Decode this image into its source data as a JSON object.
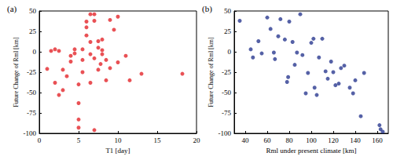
{
  "chart_data": [
    {
      "type": "scatter",
      "title": "(a)",
      "x_label": "T1 [day]",
      "y_label": "Future Change of Rml [km]",
      "color": "#e3262b",
      "marker": "circle",
      "x": [
        1,
        1.5,
        2,
        2.5,
        2,
        2.5,
        3,
        3,
        3.5,
        4,
        4,
        4.5,
        4.5,
        5,
        5,
        5,
        5,
        5.5,
        5.5,
        5.5,
        6,
        6,
        6,
        6.5,
        6.5,
        6.5,
        7,
        7,
        7,
        7,
        7.5,
        7.5,
        7.5,
        8,
        8,
        8,
        8.5,
        8.5,
        9,
        9,
        9.5,
        10,
        10,
        11,
        11.5,
        13,
        18.2,
        6.5,
        7.8
      ],
      "values": [
        -21,
        1,
        3,
        1,
        -38,
        -53,
        -47,
        -22,
        -30,
        -5,
        -12,
        -2,
        3,
        -40,
        -63,
        -83,
        -93,
        -25,
        -10,
        3,
        20,
        30,
        37,
        12,
        -3,
        -38,
        46,
        38,
        -8,
        -96,
        5,
        13,
        -22,
        -3,
        2,
        15,
        -10,
        -35,
        39,
        -20,
        27,
        43,
        -13,
        -5,
        -35,
        -27,
        -27,
        46,
        -15
      ],
      "xlim": [
        0,
        20
      ],
      "xticks": [
        0,
        5,
        10,
        15,
        20
      ],
      "ylim": [
        -100,
        50
      ],
      "yticks": [
        -100,
        -75,
        -50,
        -25,
        0,
        25,
        50
      ],
      "grid": false
    },
    {
      "type": "scatter",
      "title": "(b)",
      "x_label": "Rml under present climate [km]",
      "y_label": "Future Change of Rml [km]",
      "color": "#2b3990",
      "marker": "circle",
      "x": [
        35,
        45,
        47,
        52,
        55,
        60,
        63,
        66,
        67,
        70,
        72,
        76,
        78,
        79,
        80,
        83,
        85,
        87,
        90,
        92,
        95,
        97,
        100,
        102,
        103,
        105,
        107,
        110,
        113,
        115,
        118,
        120,
        122,
        125,
        127,
        130,
        135,
        138,
        140,
        145,
        148,
        162,
        163,
        165
      ],
      "values": [
        38,
        3,
        -7,
        13,
        -2,
        42,
        28,
        -1,
        -9,
        19,
        40,
        15,
        -37,
        -31,
        37,
        12,
        -16,
        -1,
        46,
        -4,
        -51,
        -26,
        11,
        16,
        -44,
        -53,
        -7,
        16,
        -24,
        -33,
        -12,
        -25,
        -41,
        -39,
        -20,
        -17,
        -44,
        -51,
        -35,
        -79,
        -26,
        -90,
        -95,
        -98
      ],
      "xlim": [
        30,
        170
      ],
      "xticks": [
        40,
        60,
        80,
        100,
        120,
        140,
        160
      ],
      "ylim": [
        -100,
        50
      ],
      "yticks": [
        -100,
        -75,
        -50,
        -25,
        0,
        25,
        50
      ],
      "grid": false
    }
  ]
}
